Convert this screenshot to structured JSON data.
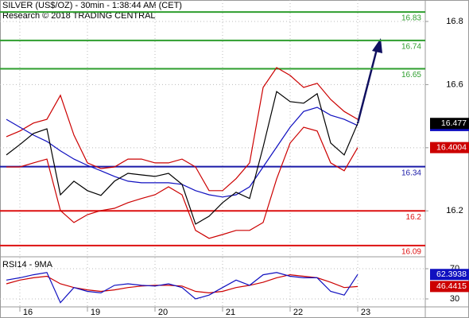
{
  "chart_data": [
    {
      "type": "line",
      "title": "SILVER (US$/OZ) - 30min - 1:38:44 AM (CET)",
      "subtitle": "Research © 2018 TRADING CENTRAL",
      "x": [
        -0.2,
        0,
        0.2,
        0.4,
        0.6,
        0.8,
        1,
        1.2,
        1.4,
        1.6,
        1.8,
        2,
        2.2,
        2.4,
        2.6,
        2.8,
        3,
        3.2,
        3.4,
        3.6,
        3.8,
        4,
        4.2,
        4.4,
        4.6,
        4.8,
        5
      ],
      "xlim": [
        -0.294,
        6
      ],
      "xticks": [
        {
          "value": 0,
          "label": "16"
        },
        {
          "value": 1,
          "label": "19"
        },
        {
          "value": 2,
          "label": "20"
        },
        {
          "value": 3,
          "label": "21"
        },
        {
          "value": 4,
          "label": "22"
        },
        {
          "value": 5,
          "label": "23"
        }
      ],
      "ylim": [
        16.057,
        16.868
      ],
      "yticks": [
        16.2,
        16.4,
        16.6,
        16.8
      ],
      "grid": true,
      "levels": [
        {
          "value": 16.83,
          "color": "#2e9e2e"
        },
        {
          "value": 16.74,
          "color": "#2e9e2e"
        },
        {
          "value": 16.65,
          "color": "#2e9e2e"
        },
        {
          "value": 16.34,
          "color": "#1a1aa8"
        },
        {
          "value": 16.2,
          "color": "#dd1111"
        },
        {
          "value": 16.09,
          "color": "#dd1111"
        }
      ],
      "series": [
        {
          "color": "#cc0000",
          "badge": false,
          "values": [
            16.435,
            16.453,
            16.478,
            16.49,
            16.566,
            16.44,
            16.352,
            16.334,
            16.339,
            16.364,
            16.364,
            16.352,
            16.352,
            16.364,
            16.339,
            16.264,
            16.264,
            16.302,
            16.352,
            16.591,
            16.654,
            16.629,
            16.591,
            16.604,
            16.553,
            16.515,
            16.49
          ]
        },
        {
          "color": "#cc0000",
          "badge": true,
          "values": [
            16.339,
            16.339,
            16.352,
            16.364,
            16.201,
            16.163,
            16.188,
            16.201,
            16.208,
            16.226,
            16.239,
            16.251,
            16.276,
            16.251,
            16.138,
            16.113,
            16.125,
            16.138,
            16.138,
            16.163,
            16.301,
            16.415,
            16.465,
            16.453,
            16.352,
            16.327,
            16.4004
          ]
        },
        {
          "color": "#1010c0",
          "badge": true,
          "values": [
            16.49,
            16.465,
            16.44,
            16.42,
            16.39,
            16.364,
            16.344,
            16.327,
            16.309,
            16.294,
            16.289,
            16.289,
            16.289,
            16.284,
            16.264,
            16.251,
            16.244,
            16.251,
            16.276,
            16.339,
            16.402,
            16.465,
            16.515,
            16.528,
            16.503,
            16.49,
            16.4702
          ]
        },
        {
          "color": "#000000",
          "badge": true,
          "values": [
            16.377,
            16.41,
            16.445,
            16.46,
            16.251,
            16.294,
            16.264,
            16.249,
            16.294,
            16.319,
            16.314,
            16.309,
            16.319,
            16.284,
            16.158,
            16.183,
            16.226,
            16.259,
            16.239,
            16.402,
            16.578,
            16.546,
            16.541,
            16.571,
            16.415,
            16.377,
            16.477
          ]
        }
      ]
    },
    {
      "type": "line",
      "title": "RSI14 - 9MA",
      "x": [
        -0.2,
        0,
        0.2,
        0.4,
        0.6,
        0.8,
        1,
        1.2,
        1.4,
        1.6,
        1.8,
        2,
        2.2,
        2.4,
        2.6,
        2.8,
        3,
        3.2,
        3.4,
        3.6,
        3.8,
        4,
        4.2,
        4.4,
        4.6,
        4.8,
        5
      ],
      "xlim": [
        -0.294,
        6
      ],
      "ylim": [
        20.5,
        81.6
      ],
      "yticks": [
        30,
        70
      ],
      "grid": true,
      "series": [
        {
          "color": "#cc0000",
          "badge": true,
          "values": [
            50,
            55,
            58,
            60,
            50,
            45,
            42,
            40,
            42,
            45,
            47,
            48,
            48,
            47,
            40,
            38,
            40,
            45,
            48,
            52,
            58,
            62,
            60,
            58,
            52,
            45,
            46.4415
          ]
        },
        {
          "color": "#1010c0",
          "badge": true,
          "values": [
            55,
            58,
            62,
            65,
            25,
            45,
            40,
            38,
            48,
            50,
            48,
            47,
            50,
            45,
            30,
            35,
            45,
            55,
            48,
            62,
            65,
            60,
            58,
            58,
            40,
            35,
            62.3938
          ]
        }
      ]
    }
  ]
}
